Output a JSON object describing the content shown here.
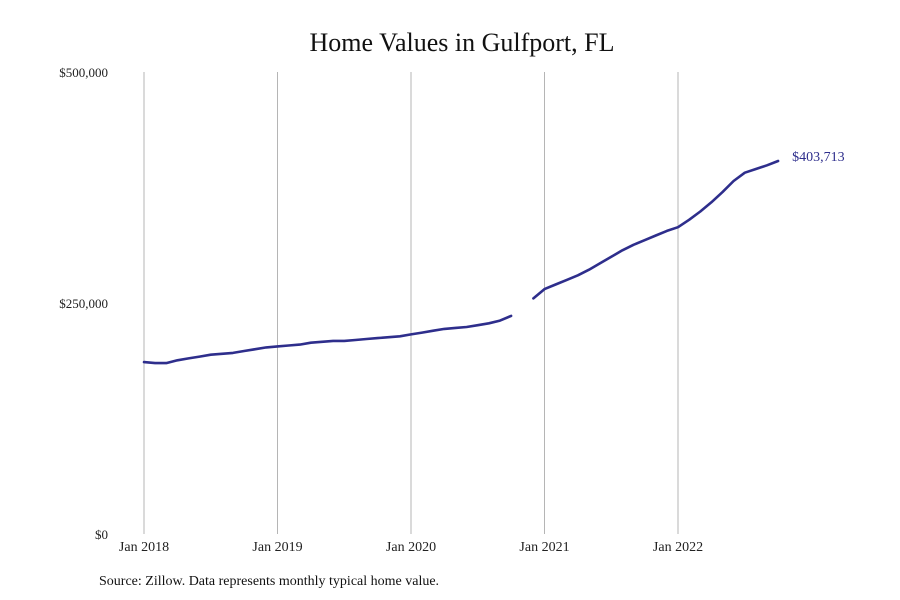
{
  "chart_data": {
    "type": "line",
    "title": "Home Values in Gulfport, FL",
    "xlabel": "",
    "ylabel": "",
    "ylim": [
      0,
      500000
    ],
    "y_ticks": [
      {
        "value": 0,
        "label": "$0"
      },
      {
        "value": 250000,
        "label": "$250,000"
      },
      {
        "value": 500000,
        "label": "$500,000"
      }
    ],
    "x_ticks": [
      {
        "value": "2018-01",
        "label": "Jan 2018"
      },
      {
        "value": "2019-01",
        "label": "Jan 2019"
      },
      {
        "value": "2020-01",
        "label": "Jan 2020"
      },
      {
        "value": "2021-01",
        "label": "Jan 2021"
      },
      {
        "value": "2022-01",
        "label": "Jan 2022"
      }
    ],
    "grid": "vertical",
    "series": [
      {
        "name": "",
        "color": "#2e2e8c",
        "points": [
          [
            "2018-01",
            186000
          ],
          [
            "2018-02",
            185000
          ],
          [
            "2018-03",
            185000
          ],
          [
            "2018-04",
            188000
          ],
          [
            "2018-05",
            190000
          ],
          [
            "2018-06",
            192000
          ],
          [
            "2018-07",
            194000
          ],
          [
            "2018-08",
            195000
          ],
          [
            "2018-09",
            196000
          ],
          [
            "2018-10",
            198000
          ],
          [
            "2018-11",
            200000
          ],
          [
            "2018-12",
            202000
          ],
          [
            "2019-01",
            203000
          ],
          [
            "2019-02",
            204000
          ],
          [
            "2019-03",
            205000
          ],
          [
            "2019-04",
            207000
          ],
          [
            "2019-05",
            208000
          ],
          [
            "2019-06",
            209000
          ],
          [
            "2019-07",
            209000
          ],
          [
            "2019-08",
            210000
          ],
          [
            "2019-09",
            211000
          ],
          [
            "2019-10",
            212000
          ],
          [
            "2019-11",
            213000
          ],
          [
            "2019-12",
            214000
          ],
          [
            "2020-01",
            216000
          ],
          [
            "2020-02",
            218000
          ],
          [
            "2020-03",
            220000
          ],
          [
            "2020-04",
            222000
          ],
          [
            "2020-05",
            223000
          ],
          [
            "2020-06",
            224000
          ],
          [
            "2020-07",
            226000
          ],
          [
            "2020-08",
            228000
          ],
          [
            "2020-09",
            231000
          ],
          [
            "2020-10",
            236000
          ],
          [
            "2020-11",
            null
          ],
          [
            "2020-12",
            255000
          ],
          [
            "2021-01",
            265000
          ],
          [
            "2021-02",
            270000
          ],
          [
            "2021-03",
            275000
          ],
          [
            "2021-04",
            280000
          ],
          [
            "2021-05",
            286000
          ],
          [
            "2021-06",
            293000
          ],
          [
            "2021-07",
            300000
          ],
          [
            "2021-08",
            307000
          ],
          [
            "2021-09",
            313000
          ],
          [
            "2021-10",
            318000
          ],
          [
            "2021-11",
            323000
          ],
          [
            "2021-12",
            328000
          ],
          [
            "2022-01",
            332000
          ],
          [
            "2022-02",
            340000
          ],
          [
            "2022-03",
            349000
          ],
          [
            "2022-04",
            359000
          ],
          [
            "2022-05",
            370000
          ],
          [
            "2022-06",
            382000
          ],
          [
            "2022-07",
            391000
          ],
          [
            "2022-08",
            395000
          ],
          [
            "2022-09",
            399000
          ],
          [
            "2022-10",
            403713
          ]
        ],
        "end_label": "$403,713"
      }
    ]
  },
  "footer": {
    "source": "Source: Zillow. Data represents monthly typical home value."
  }
}
